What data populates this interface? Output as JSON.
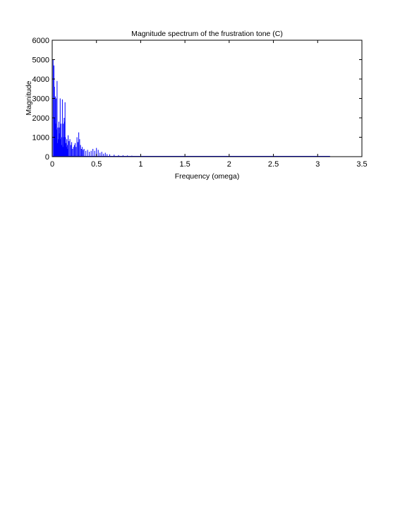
{
  "chart_data": {
    "type": "bar",
    "title": "Magnitude spectrum of the frustration tone (C)",
    "xlabel": "Frequency (omega)",
    "ylabel": "Magnitude",
    "xlim": [
      0,
      3.5
    ],
    "ylim": [
      0,
      6000
    ],
    "xticks": [
      "0",
      "0.5",
      "1",
      "1.5",
      "2",
      "2.5",
      "3",
      "3.5"
    ],
    "yticks": [
      "0",
      "1000",
      "2000",
      "3000",
      "4000",
      "5000",
      "6000"
    ],
    "grid": false,
    "legend": "none",
    "series": [
      {
        "color": "#0000ff",
        "x": [
          0.01,
          0.02,
          0.025,
          0.03,
          0.035,
          0.04,
          0.045,
          0.05,
          0.055,
          0.06,
          0.065,
          0.07,
          0.075,
          0.08,
          0.085,
          0.09,
          0.095,
          0.1,
          0.105,
          0.11,
          0.115,
          0.12,
          0.125,
          0.13,
          0.135,
          0.14,
          0.145,
          0.15,
          0.155,
          0.16,
          0.165,
          0.17,
          0.175,
          0.18,
          0.19,
          0.2,
          0.21,
          0.22,
          0.23,
          0.24,
          0.25,
          0.26,
          0.27,
          0.28,
          0.29,
          0.3,
          0.31,
          0.32,
          0.33,
          0.34,
          0.35,
          0.36,
          0.38,
          0.4,
          0.42,
          0.44,
          0.46,
          0.48,
          0.5,
          0.52,
          0.54,
          0.56,
          0.58,
          0.6,
          0.62,
          0.65,
          0.7,
          0.75,
          0.8,
          0.85,
          0.9,
          1.0,
          1.1,
          1.2,
          1.4,
          1.6,
          1.8,
          2.0,
          2.2,
          2.4,
          2.6,
          2.8,
          3.0,
          3.14
        ],
        "values": [
          5000,
          4700,
          3600,
          2000,
          3100,
          1700,
          3000,
          1400,
          3900,
          700,
          1500,
          900,
          1800,
          1200,
          1500,
          3000,
          900,
          1700,
          600,
          1000,
          2950,
          500,
          1700,
          1000,
          2000,
          1800,
          2800,
          1000,
          700,
          500,
          900,
          600,
          400,
          1100,
          800,
          900,
          600,
          750,
          400,
          500,
          600,
          700,
          500,
          1000,
          750,
          1250,
          900,
          600,
          400,
          500,
          350,
          400,
          300,
          350,
          250,
          300,
          400,
          300,
          450,
          350,
          200,
          250,
          150,
          200,
          130,
          120,
          100,
          80,
          70,
          60,
          50,
          40,
          30,
          25,
          20,
          20,
          15,
          15,
          12,
          10,
          10,
          10,
          10,
          10
        ]
      }
    ]
  }
}
